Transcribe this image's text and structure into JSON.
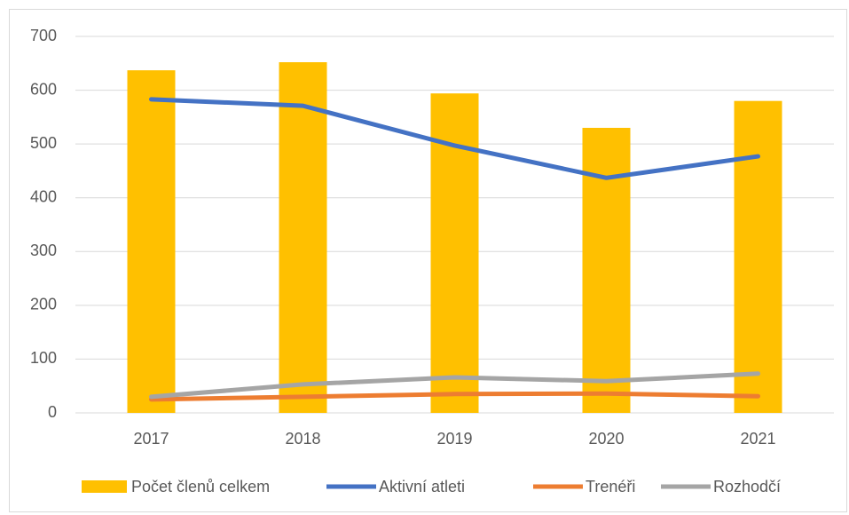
{
  "chart_data": {
    "type": "bar",
    "categories": [
      "2017",
      "2018",
      "2019",
      "2020",
      "2021"
    ],
    "series": [
      {
        "name": "Počet členů celkem",
        "type": "bar",
        "color": "#ffc000",
        "values": [
          637,
          652,
          594,
          530,
          580
        ]
      },
      {
        "name": "Aktivní atleti",
        "type": "line",
        "color": "#4472c4",
        "values": [
          583,
          571,
          497,
          437,
          477
        ]
      },
      {
        "name": "Trenéři",
        "type": "line",
        "color": "#ed7d31",
        "values": [
          25,
          30,
          35,
          36,
          31
        ]
      },
      {
        "name": "Rozhodčí",
        "type": "line",
        "color": "#a5a5a5",
        "values": [
          30,
          53,
          66,
          59,
          73
        ]
      }
    ],
    "ylim": [
      0,
      700
    ],
    "yticks": [
      0,
      100,
      200,
      300,
      400,
      500,
      600,
      700
    ],
    "grid": true,
    "legend": "bottom"
  }
}
